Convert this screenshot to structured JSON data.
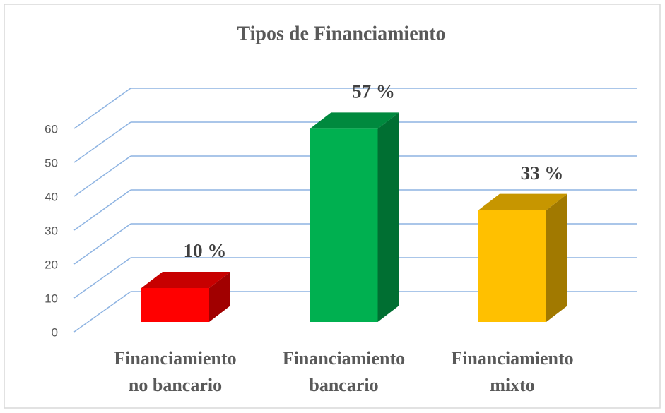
{
  "chart_data": {
    "type": "bar3d",
    "title": "Tipos de Financiamiento",
    "categories": [
      "Financiamiento no bancario",
      "Financiamiento bancario",
      "Financiamiento mixto"
    ],
    "values": [
      10,
      57,
      33
    ],
    "value_labels": [
      "10 %",
      "57 %",
      "33 %"
    ],
    "colors": [
      "#ff0000",
      "#00b050",
      "#ffc000"
    ],
    "ylim": [
      0,
      60
    ],
    "yticks": [
      0,
      10,
      20,
      30,
      40,
      50,
      60
    ],
    "grid": true
  }
}
